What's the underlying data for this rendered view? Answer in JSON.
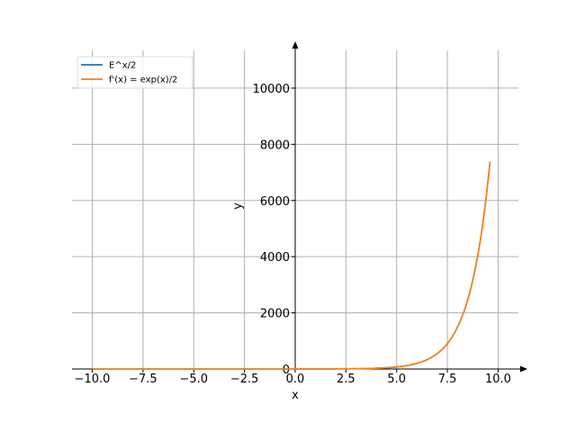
{
  "chart_data": {
    "type": "line",
    "title": "",
    "xlabel": "x",
    "ylabel": "y",
    "xlim": [
      -11.0,
      11.0
    ],
    "ylim": [
      0,
      11600
    ],
    "grid": true,
    "legend_position": "top-left",
    "x_ticks": [
      -10.0,
      -7.5,
      -5.0,
      -2.5,
      0.0,
      2.5,
      5.0,
      7.5,
      10.0
    ],
    "x_tick_labels": [
      "−10.0",
      "−7.5",
      "−5.0",
      "−2.5",
      "0.0",
      "2.5",
      "5.0",
      "7.5",
      "10.0"
    ],
    "y_ticks": [
      0,
      2000,
      4000,
      6000,
      8000,
      10000
    ],
    "y_tick_labels": [
      "0",
      "2000",
      "4000",
      "6000",
      "8000",
      "10000"
    ],
    "x_range": [
      -10.0,
      9.6
    ],
    "series": [
      {
        "name": "E^x/2",
        "color": "#1f77b4",
        "function": "exp(x)/2",
        "x": [
          -10,
          -8,
          -6,
          -4,
          -2,
          0,
          2,
          4,
          5,
          6,
          7,
          7.5,
          8,
          8.5,
          9,
          9.3,
          9.6
        ],
        "values": [
          0.0,
          0.0,
          0.0,
          0.01,
          0.07,
          0.5,
          3.69,
          27.3,
          74.2,
          201.7,
          548.3,
          904.0,
          1490.5,
          2457.3,
          4051.5,
          5468.8,
          7382.1
        ]
      },
      {
        "name": "f'(x) = exp(x)/2",
        "color": "#ff7f0e",
        "function": "exp(x)/2",
        "x": [
          -10,
          -8,
          -6,
          -4,
          -2,
          0,
          2,
          4,
          5,
          6,
          7,
          7.5,
          8,
          8.5,
          9,
          9.3,
          9.6
        ],
        "values": [
          0.0,
          0.0,
          0.0,
          0.01,
          0.07,
          0.5,
          3.69,
          27.3,
          74.2,
          201.7,
          548.3,
          904.0,
          1490.5,
          2457.3,
          4051.5,
          5468.8,
          7382.1
        ]
      }
    ]
  }
}
